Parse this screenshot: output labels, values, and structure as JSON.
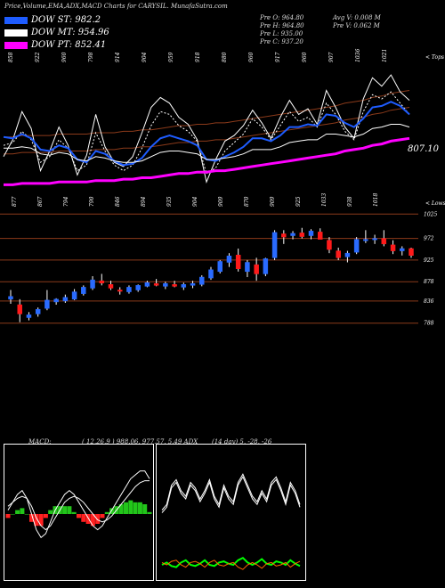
{
  "header": {
    "title": "Price,Volume,EMA,ADX,MACD Charts for CARYSIL. MunafaSutra.com"
  },
  "legend": [
    {
      "label": "DOW ST: 982.2",
      "color": "#1e5cff"
    },
    {
      "label": "DOW MT: 954.96",
      "color": "#ffffff"
    },
    {
      "label": "DOW PT: 852.41",
      "color": "#ff00ff"
    }
  ],
  "ohlc_info": {
    "pre_o": "Pre  O: 964.80",
    "pre_h": "Pre  H: 964.80",
    "pre_l": "Pre  L: 935.00",
    "pre_c": "Pre  C: 937.20",
    "avg_v": "Avg V: 0.008  M",
    "pre_v": "Pre  V: 0.062  M"
  },
  "macd_label": "MACD:",
  "macd_values": "( 12,26,9 ) 988.06, 977.57, 5.49 ADX",
  "adx_values": "(14  day) 5, -28, -26",
  "chart_data": [
    {
      "type": "line",
      "name": "price-ema",
      "top_ticks": [
        "858",
        "922",
        "960",
        "798",
        "914",
        "904",
        "959",
        "918",
        "880",
        "960",
        "917",
        "960",
        "907",
        "1036",
        "1021"
      ],
      "bottom_ticks": [
        "877",
        "867",
        "794",
        "790",
        "846",
        "894",
        "935",
        "904",
        "909",
        "870",
        "909",
        "925",
        "1033",
        "938",
        "1018"
      ],
      "upper_annotation": "< Tops",
      "lower_annotation": "< Lows",
      "last_value_label": "807.10",
      "series": [
        {
          "name": "",
          "color": "#ffffff",
          "values": [
            868,
            880,
            900,
            888,
            858,
            872,
            889,
            876,
            855,
            869,
            898,
            875,
            864,
            861,
            868,
            885,
            903,
            910,
            906,
            896,
            891,
            880,
            850,
            866,
            879,
            883,
            890,
            901,
            892,
            881,
            896,
            908,
            898,
            902,
            891,
            915,
            903,
            889,
            881,
            909,
            924,
            918,
            926,
            914,
            908
          ]
        },
        {
          "name": "",
          "color": "#ffffff",
          "values": [
            876,
            878,
            886,
            880,
            864,
            868,
            880,
            874,
            858,
            862,
            885,
            872,
            862,
            858,
            862,
            874,
            890,
            900,
            898,
            890,
            886,
            879,
            856,
            860,
            872,
            878,
            884,
            895,
            889,
            880,
            890,
            900,
            893,
            896,
            889,
            906,
            898,
            886,
            880,
            900,
            912,
            909,
            914,
            906,
            898
          ]
        },
        {
          "name": "DOW ST",
          "color": "#1e5cff",
          "values": [
            882,
            881,
            884,
            881,
            873,
            872,
            876,
            874,
            866,
            864,
            872,
            870,
            865,
            862,
            863,
            867,
            875,
            881,
            883,
            881,
            879,
            876,
            866,
            865,
            868,
            871,
            875,
            881,
            881,
            879,
            883,
            889,
            889,
            891,
            890,
            898,
            897,
            892,
            889,
            895,
            903,
            904,
            907,
            904,
            898
          ]
        },
        {
          "name": "DOW MT",
          "color": "#ffffff",
          "values": [
            874,
            874,
            875,
            874,
            870,
            869,
            871,
            870,
            866,
            865,
            868,
            867,
            865,
            864,
            864,
            865,
            868,
            871,
            872,
            872,
            871,
            870,
            866,
            866,
            867,
            868,
            870,
            873,
            873,
            873,
            875,
            878,
            879,
            880,
            880,
            884,
            884,
            883,
            882,
            884,
            888,
            889,
            891,
            891,
            889
          ]
        },
        {
          "name": "DOW PT",
          "color": "#ff00ff",
          "values": [
            848,
            848,
            849,
            849,
            849,
            849,
            850,
            850,
            850,
            850,
            851,
            851,
            851,
            852,
            852,
            853,
            853,
            854,
            855,
            856,
            856,
            857,
            857,
            858,
            858,
            859,
            860,
            861,
            862,
            863,
            864,
            865,
            866,
            867,
            868,
            869,
            870,
            872,
            873,
            874,
            876,
            877,
            879,
            880,
            881
          ]
        }
      ],
      "line_types": [
        "solid",
        "dotted",
        "solid",
        "solid",
        "solid"
      ]
    },
    {
      "type": "candlestick",
      "name": "daily-candles",
      "ylabels": [
        "1025",
        "972",
        "925",
        "878",
        "836",
        "788"
      ],
      "candles": [
        {
          "o": 840,
          "h": 860,
          "l": 830,
          "c": 846
        },
        {
          "o": 828,
          "h": 840,
          "l": 790,
          "c": 808
        },
        {
          "o": 800,
          "h": 812,
          "l": 794,
          "c": 806
        },
        {
          "o": 808,
          "h": 822,
          "l": 802,
          "c": 818
        },
        {
          "o": 820,
          "h": 860,
          "l": 816,
          "c": 838
        },
        {
          "o": 834,
          "h": 842,
          "l": 828,
          "c": 840
        },
        {
          "o": 836,
          "h": 850,
          "l": 832,
          "c": 844
        },
        {
          "o": 840,
          "h": 862,
          "l": 838,
          "c": 856
        },
        {
          "o": 852,
          "h": 870,
          "l": 848,
          "c": 866
        },
        {
          "o": 864,
          "h": 890,
          "l": 860,
          "c": 882
        },
        {
          "o": 880,
          "h": 895,
          "l": 870,
          "c": 875
        },
        {
          "o": 872,
          "h": 880,
          "l": 860,
          "c": 864
        },
        {
          "o": 860,
          "h": 866,
          "l": 850,
          "c": 858
        },
        {
          "o": 856,
          "h": 870,
          "l": 852,
          "c": 866
        },
        {
          "o": 860,
          "h": 872,
          "l": 856,
          "c": 870
        },
        {
          "o": 868,
          "h": 880,
          "l": 866,
          "c": 876
        },
        {
          "o": 874,
          "h": 884,
          "l": 868,
          "c": 870
        },
        {
          "o": 868,
          "h": 878,
          "l": 862,
          "c": 874
        },
        {
          "o": 872,
          "h": 880,
          "l": 866,
          "c": 868
        },
        {
          "o": 866,
          "h": 876,
          "l": 860,
          "c": 872
        },
        {
          "o": 870,
          "h": 880,
          "l": 864,
          "c": 874
        },
        {
          "o": 872,
          "h": 892,
          "l": 868,
          "c": 888
        },
        {
          "o": 886,
          "h": 910,
          "l": 882,
          "c": 904
        },
        {
          "o": 900,
          "h": 925,
          "l": 896,
          "c": 922
        },
        {
          "o": 920,
          "h": 940,
          "l": 910,
          "c": 934
        },
        {
          "o": 936,
          "h": 950,
          "l": 900,
          "c": 906
        },
        {
          "o": 900,
          "h": 925,
          "l": 888,
          "c": 920
        },
        {
          "o": 915,
          "h": 930,
          "l": 880,
          "c": 895
        },
        {
          "o": 895,
          "h": 930,
          "l": 890,
          "c": 928
        },
        {
          "o": 930,
          "h": 990,
          "l": 925,
          "c": 985
        },
        {
          "o": 982,
          "h": 990,
          "l": 960,
          "c": 975
        },
        {
          "o": 978,
          "h": 988,
          "l": 970,
          "c": 983
        },
        {
          "o": 984,
          "h": 995,
          "l": 972,
          "c": 976
        },
        {
          "o": 978,
          "h": 992,
          "l": 970,
          "c": 988
        },
        {
          "o": 986,
          "h": 994,
          "l": 970,
          "c": 970
        },
        {
          "o": 968,
          "h": 975,
          "l": 940,
          "c": 948
        },
        {
          "o": 945,
          "h": 952,
          "l": 925,
          "c": 930
        },
        {
          "o": 932,
          "h": 945,
          "l": 920,
          "c": 940
        },
        {
          "o": 942,
          "h": 975,
          "l": 938,
          "c": 970
        },
        {
          "o": 968,
          "h": 990,
          "l": 962,
          "c": 970
        },
        {
          "o": 970,
          "h": 980,
          "l": 960,
          "c": 972
        },
        {
          "o": 972,
          "h": 990,
          "l": 955,
          "c": 960
        },
        {
          "o": 958,
          "h": 968,
          "l": 938,
          "c": 945
        },
        {
          "o": 945,
          "h": 955,
          "l": 935,
          "c": 950
        },
        {
          "o": 950,
          "h": 952,
          "l": 930,
          "c": 935
        }
      ]
    },
    {
      "type": "line",
      "name": "macd",
      "series": [
        {
          "name": "",
          "color": "#ffffff",
          "values": [
            2,
            6,
            10,
            12,
            8,
            0,
            -8,
            -12,
            -10,
            -4,
            2,
            6,
            10,
            12,
            10,
            6,
            2,
            -2,
            -6,
            -8,
            -6,
            -2,
            2,
            6,
            10,
            14,
            18,
            20,
            22,
            22,
            18
          ]
        },
        {
          "name": "",
          "color": "#ffffff",
          "values": [
            4,
            6,
            8,
            9,
            8,
            4,
            -2,
            -6,
            -8,
            -6,
            -2,
            2,
            6,
            8,
            9,
            8,
            6,
            3,
            0,
            -3,
            -4,
            -3,
            -1,
            2,
            5,
            8,
            11,
            14,
            16,
            17,
            17
          ]
        }
      ],
      "histogram": [
        -2,
        0,
        2,
        3,
        0,
        -4,
        -6,
        -6,
        -2,
        2,
        4,
        4,
        4,
        4,
        1,
        -2,
        -4,
        -5,
        -6,
        -5,
        -2,
        1,
        3,
        4,
        5,
        6,
        7,
        6,
        6,
        5,
        1
      ]
    },
    {
      "type": "line",
      "name": "adx",
      "series": [
        {
          "name": "",
          "color": "#ffffff",
          "values": [
            30,
            34,
            48,
            52,
            44,
            40,
            50,
            46,
            38,
            44,
            52,
            40,
            34,
            48,
            40,
            36,
            50,
            56,
            48,
            40,
            36,
            44,
            38,
            50,
            54,
            46,
            36,
            50,
            44,
            34
          ]
        },
        {
          "name": "",
          "color": "#00ff00",
          "values": [
            10,
            12,
            9,
            8,
            12,
            14,
            10,
            9,
            11,
            14,
            10,
            9,
            12,
            13,
            11,
            10,
            14,
            16,
            12,
            10,
            12,
            15,
            11,
            10,
            13,
            12,
            10,
            14,
            11,
            9
          ]
        },
        {
          "name": "",
          "color": "#ff6600",
          "values": [
            12,
            10,
            13,
            14,
            10,
            8,
            12,
            13,
            11,
            8,
            12,
            14,
            10,
            9,
            11,
            12,
            8,
            6,
            10,
            12,
            10,
            7,
            11,
            12,
            9,
            10,
            12,
            8,
            11,
            13
          ]
        }
      ]
    }
  ]
}
